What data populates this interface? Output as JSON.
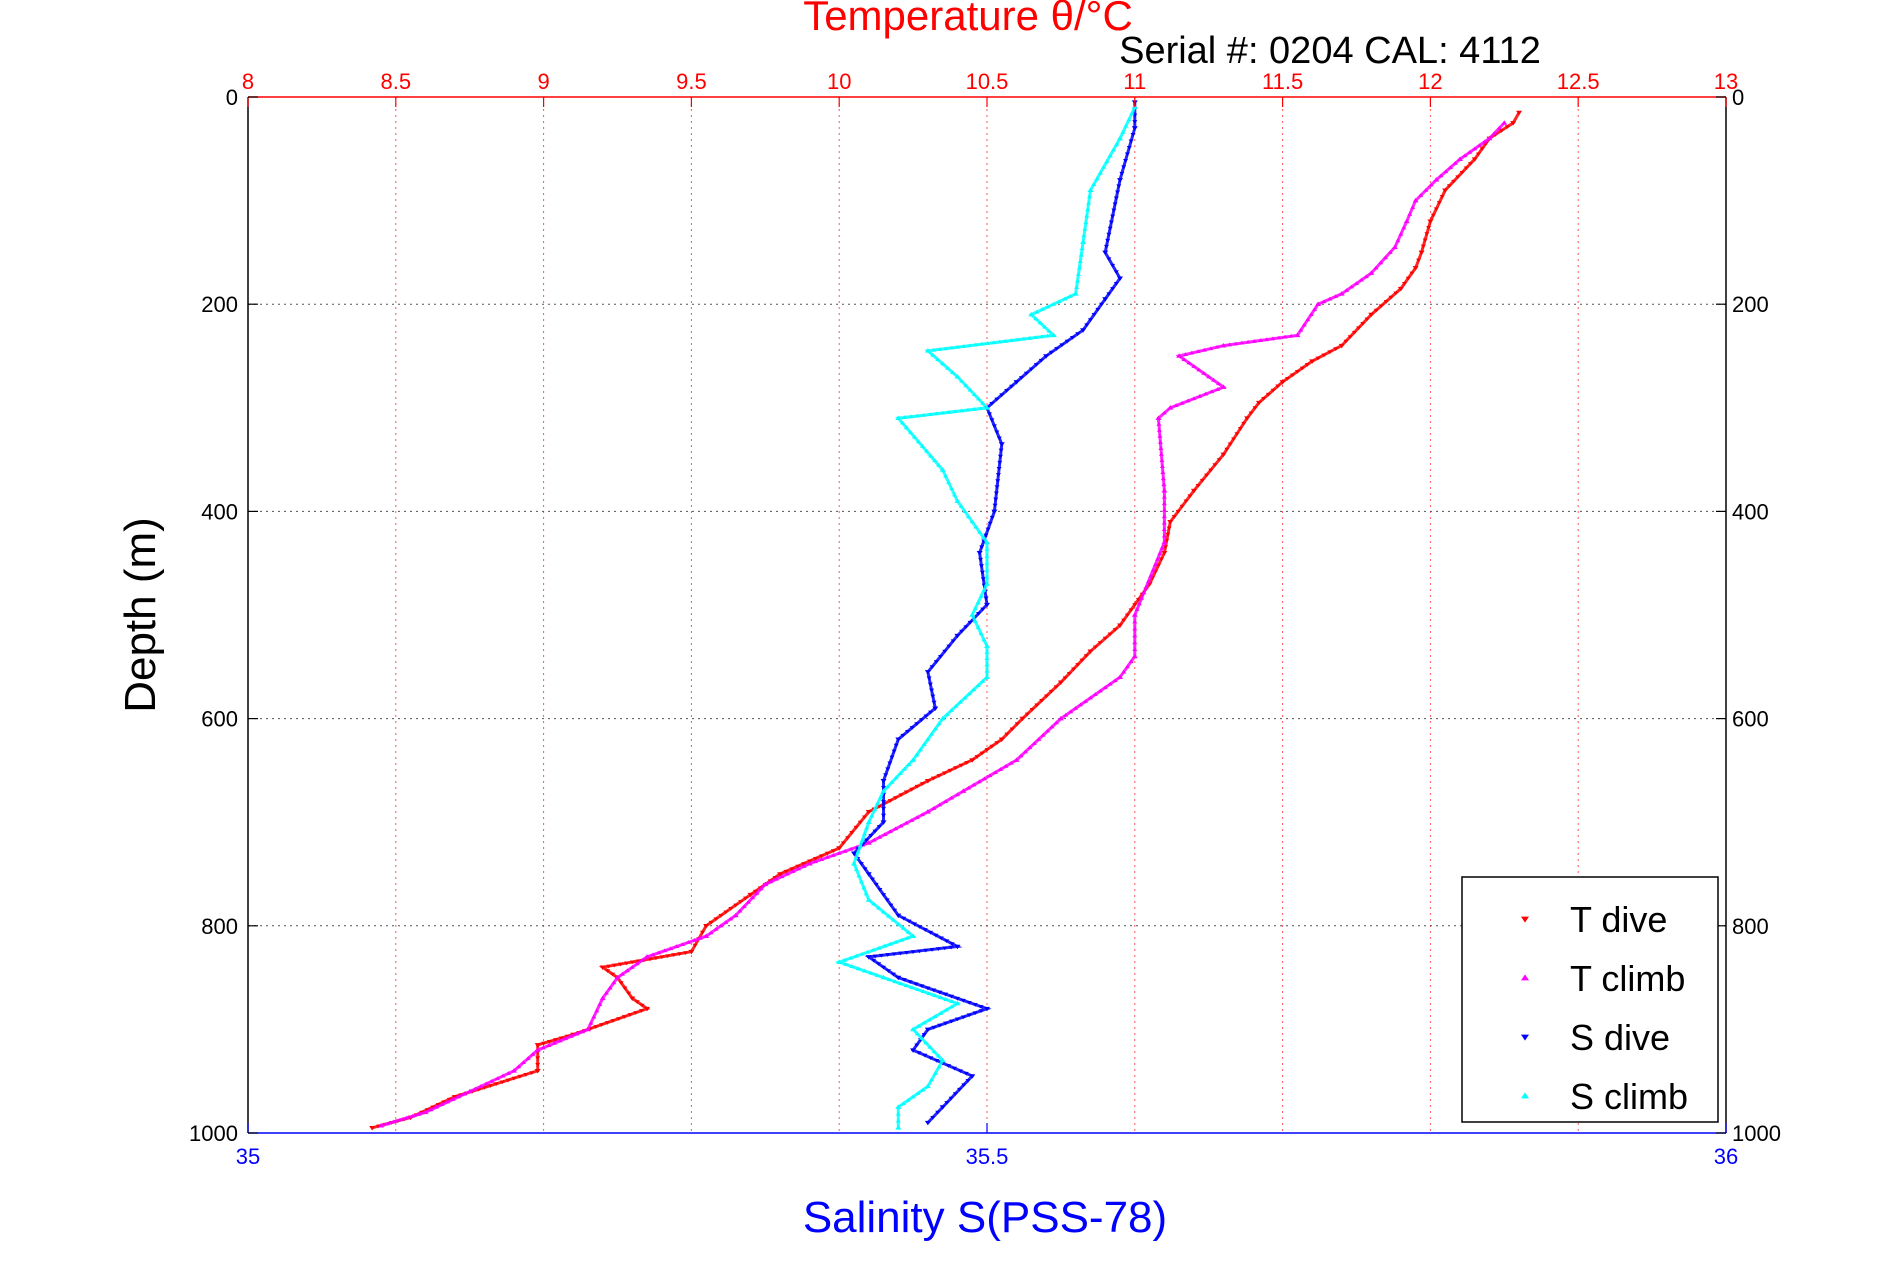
{
  "chart_data": {
    "type": "scatter",
    "title": "Temperature θ/°C",
    "subtitle": "Serial #: 0204  CAL: 4112",
    "xlabel_bottom": "Salinity S(PSS-78)",
    "ylabel": "Depth (m)",
    "x_top": {
      "range": [
        8,
        13
      ],
      "ticks": [
        "8",
        "8.5",
        "9",
        "9.5",
        "10",
        "10.5",
        "11",
        "11.5",
        "12",
        "12.5",
        "13"
      ],
      "color": "#ff0000"
    },
    "x_bottom": {
      "range": [
        35,
        36
      ],
      "ticks": [
        "35",
        "35.5",
        "36"
      ],
      "color": "#0000ff"
    },
    "y": {
      "range": [
        0,
        1000
      ],
      "reversed": true,
      "ticks": [
        "0",
        "200",
        "400",
        "600",
        "800",
        "1000"
      ]
    },
    "grid": true,
    "legend_position": "bottom-right",
    "series": [
      {
        "name": "T dive",
        "axis": "top",
        "color": "#ff0000",
        "marker": "triangle-down",
        "points": [
          [
            12.3,
            15
          ],
          [
            12.28,
            25
          ],
          [
            12.2,
            40
          ],
          [
            12.15,
            60
          ],
          [
            12.05,
            90
          ],
          [
            12.0,
            120
          ],
          [
            11.97,
            150
          ],
          [
            11.95,
            165
          ],
          [
            11.9,
            185
          ],
          [
            11.8,
            210
          ],
          [
            11.7,
            240
          ],
          [
            11.6,
            255
          ],
          [
            11.5,
            275
          ],
          [
            11.42,
            295
          ],
          [
            11.38,
            310
          ],
          [
            11.3,
            345
          ],
          [
            11.2,
            380
          ],
          [
            11.12,
            410
          ],
          [
            11.1,
            440
          ],
          [
            11.05,
            470
          ],
          [
            10.95,
            510
          ],
          [
            10.85,
            535
          ],
          [
            10.75,
            565
          ],
          [
            10.62,
            600
          ],
          [
            10.55,
            620
          ],
          [
            10.45,
            640
          ],
          [
            10.3,
            660
          ],
          [
            10.1,
            690
          ],
          [
            10.0,
            725
          ],
          [
            9.8,
            750
          ],
          [
            9.7,
            770
          ],
          [
            9.55,
            800
          ],
          [
            9.5,
            825
          ],
          [
            9.2,
            840
          ],
          [
            9.25,
            850
          ],
          [
            9.3,
            870
          ],
          [
            9.35,
            880
          ],
          [
            9.1,
            905
          ],
          [
            8.98,
            915
          ],
          [
            8.98,
            940
          ],
          [
            8.7,
            965
          ],
          [
            8.55,
            985
          ],
          [
            8.42,
            995
          ]
        ]
      },
      {
        "name": "T climb",
        "axis": "top",
        "color": "#ff00ff",
        "marker": "triangle-up",
        "points": [
          [
            12.25,
            25
          ],
          [
            12.2,
            40
          ],
          [
            12.1,
            60
          ],
          [
            12.02,
            80
          ],
          [
            11.95,
            100
          ],
          [
            11.92,
            120
          ],
          [
            11.88,
            145
          ],
          [
            11.8,
            170
          ],
          [
            11.7,
            190
          ],
          [
            11.62,
            200
          ],
          [
            11.55,
            230
          ],
          [
            11.3,
            240
          ],
          [
            11.15,
            250
          ],
          [
            11.3,
            280
          ],
          [
            11.12,
            300
          ],
          [
            11.08,
            310
          ],
          [
            11.1,
            380
          ],
          [
            11.1,
            430
          ],
          [
            11.0,
            500
          ],
          [
            11.0,
            540
          ],
          [
            10.95,
            560
          ],
          [
            10.75,
            600
          ],
          [
            10.6,
            640
          ],
          [
            10.42,
            670
          ],
          [
            10.3,
            690
          ],
          [
            10.1,
            720
          ],
          [
            9.9,
            740
          ],
          [
            9.75,
            760
          ],
          [
            9.65,
            790
          ],
          [
            9.55,
            810
          ],
          [
            9.35,
            830
          ],
          [
            9.25,
            850
          ],
          [
            9.2,
            870
          ],
          [
            9.15,
            900
          ],
          [
            8.98,
            920
          ],
          [
            8.9,
            940
          ],
          [
            8.75,
            960
          ],
          [
            8.6,
            980
          ],
          [
            8.45,
            993
          ]
        ]
      },
      {
        "name": "S dive",
        "axis": "bottom",
        "color": "#0000ff",
        "marker": "triangle-down",
        "points": [
          [
            35.6,
            5
          ],
          [
            35.6,
            30
          ],
          [
            35.59,
            80
          ],
          [
            35.58,
            150
          ],
          [
            35.59,
            175
          ],
          [
            35.58,
            195
          ],
          [
            35.565,
            225
          ],
          [
            35.54,
            250
          ],
          [
            35.52,
            275
          ],
          [
            35.5,
            300
          ],
          [
            35.51,
            335
          ],
          [
            35.505,
            400
          ],
          [
            35.495,
            440
          ],
          [
            35.5,
            490
          ],
          [
            35.48,
            520
          ],
          [
            35.46,
            555
          ],
          [
            35.465,
            590
          ],
          [
            35.44,
            620
          ],
          [
            35.43,
            660
          ],
          [
            35.43,
            700
          ],
          [
            35.41,
            730
          ],
          [
            35.42,
            750
          ],
          [
            35.44,
            790
          ],
          [
            35.48,
            820
          ],
          [
            35.42,
            830
          ],
          [
            35.44,
            850
          ],
          [
            35.5,
            880
          ],
          [
            35.46,
            900
          ],
          [
            35.45,
            920
          ],
          [
            35.49,
            945
          ],
          [
            35.47,
            975
          ],
          [
            35.46,
            990
          ]
        ]
      },
      {
        "name": "S climb",
        "axis": "bottom",
        "color": "#00ffff",
        "marker": "triangle-up",
        "points": [
          [
            35.6,
            10
          ],
          [
            35.59,
            40
          ],
          [
            35.57,
            90
          ],
          [
            35.565,
            140
          ],
          [
            35.56,
            190
          ],
          [
            35.53,
            210
          ],
          [
            35.545,
            230
          ],
          [
            35.46,
            245
          ],
          [
            35.48,
            270
          ],
          [
            35.5,
            300
          ],
          [
            35.44,
            310
          ],
          [
            35.47,
            360
          ],
          [
            35.48,
            390
          ],
          [
            35.5,
            430
          ],
          [
            35.5,
            470
          ],
          [
            35.49,
            500
          ],
          [
            35.5,
            530
          ],
          [
            35.5,
            560
          ],
          [
            35.47,
            600
          ],
          [
            35.45,
            640
          ],
          [
            35.43,
            670
          ],
          [
            35.42,
            700
          ],
          [
            35.41,
            740
          ],
          [
            35.42,
            775
          ],
          [
            35.45,
            810
          ],
          [
            35.4,
            835
          ],
          [
            35.43,
            850
          ],
          [
            35.48,
            875
          ],
          [
            35.45,
            900
          ],
          [
            35.47,
            930
          ],
          [
            35.46,
            955
          ],
          [
            35.44,
            975
          ],
          [
            35.44,
            995
          ]
        ]
      }
    ]
  }
}
